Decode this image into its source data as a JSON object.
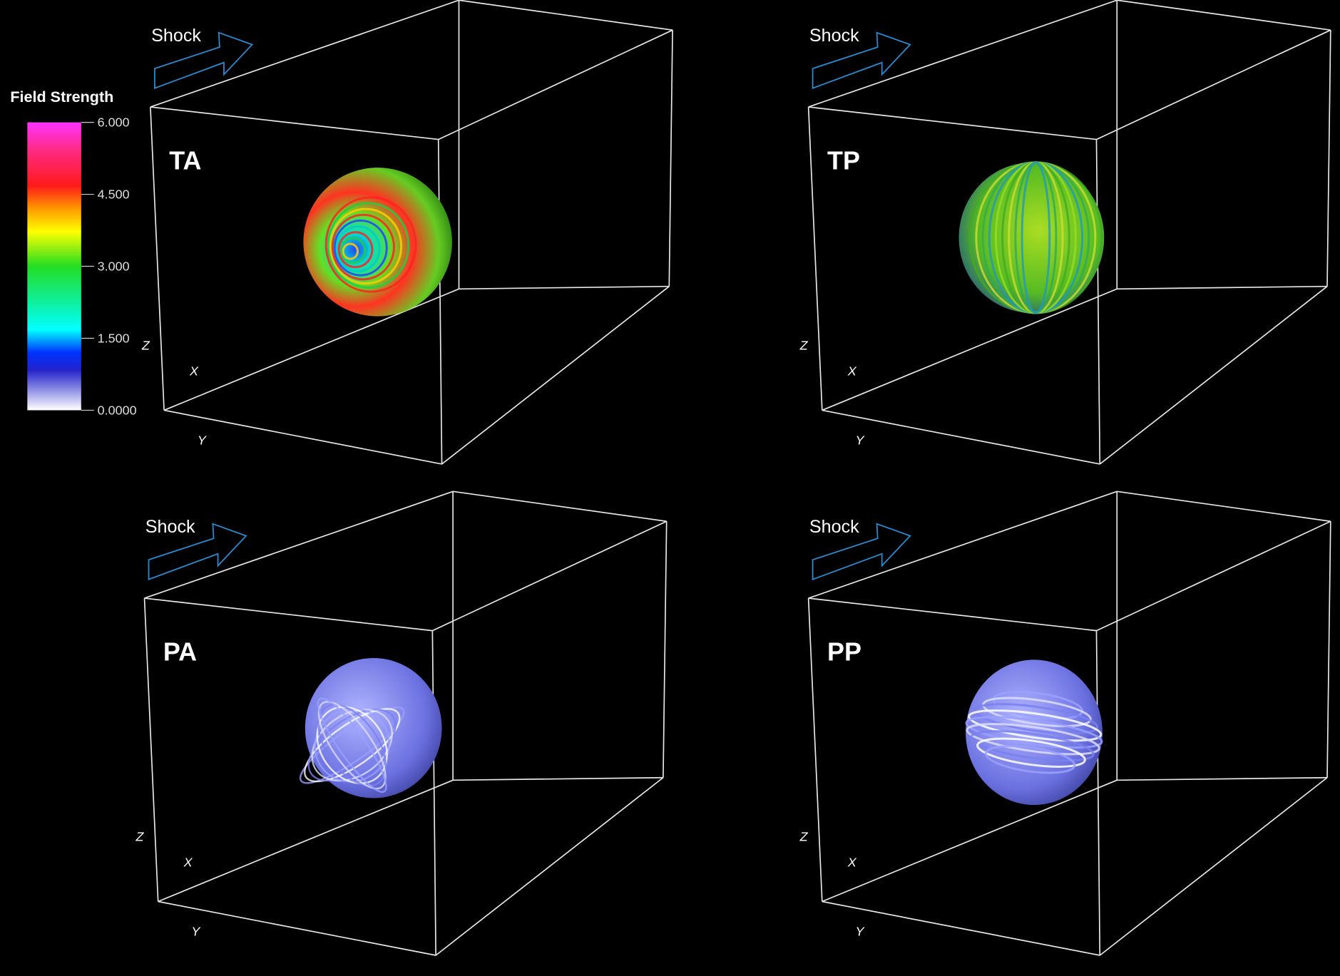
{
  "colorbar": {
    "title": "Field Strength",
    "ticks": [
      "6.000",
      "4.500",
      "3.000",
      "1.500",
      "0.0000"
    ]
  },
  "panels": [
    {
      "label": "TA",
      "shock": "Shock",
      "axes": {
        "z": "Z",
        "x": "X",
        "y": "Y"
      }
    },
    {
      "label": "TP",
      "shock": "Shock",
      "axes": {
        "z": "Z",
        "x": "X",
        "y": "Y"
      }
    },
    {
      "label": "PA",
      "shock": "Shock",
      "axes": {
        "z": "Z",
        "x": "X",
        "y": "Y"
      }
    },
    {
      "label": "PP",
      "shock": "Shock",
      "axes": {
        "z": "Z",
        "x": "X",
        "y": "Y"
      }
    }
  ]
}
